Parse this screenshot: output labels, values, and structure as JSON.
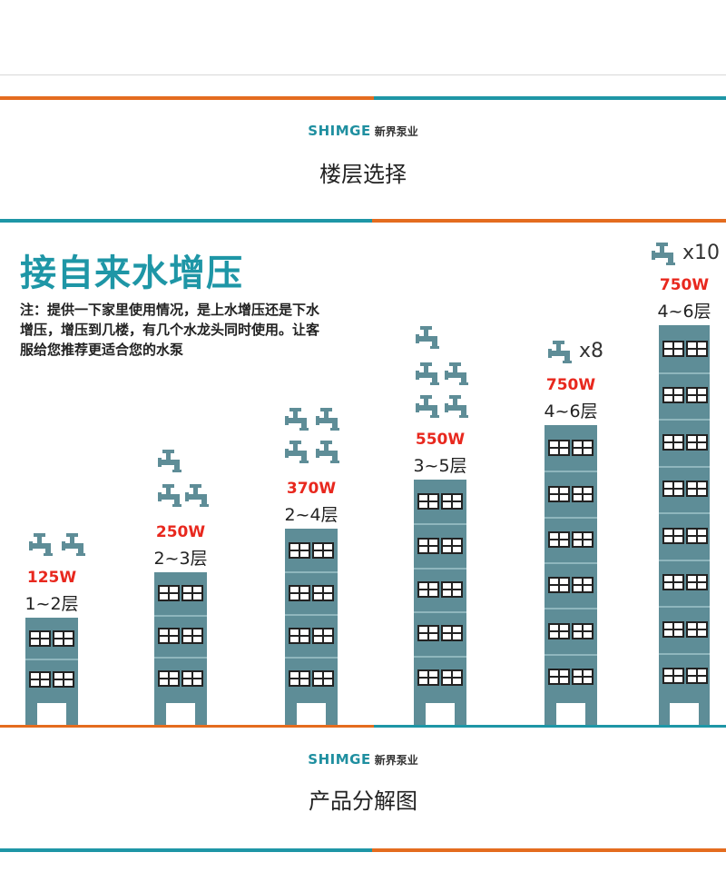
{
  "brand": {
    "en": "SHIMGE",
    "cn": "新界泵业"
  },
  "section1_title": "楼层选择",
  "headline": "接自来水增压",
  "note": "注：提供一下家里使用情况，是上水增压还是下水增压，增压到几楼，有几个水龙头同时使用。让客服给您推荐更适合您的水泵",
  "section2_title": "产品分解图",
  "colors": {
    "teal": "#1e96a6",
    "orange": "#e46c1f",
    "building": "#5e8d97",
    "power": "#e8281e"
  },
  "icons": {
    "tap": "faucet-icon"
  },
  "tiers": [
    {
      "power": "125W",
      "floors": "1~2层",
      "taps": 2,
      "multiplier": ""
    },
    {
      "power": "250W",
      "floors": "2~3层",
      "taps": 3,
      "multiplier": ""
    },
    {
      "power": "370W",
      "floors": "2~4层",
      "taps": 4,
      "multiplier": ""
    },
    {
      "power": "550W",
      "floors": "3~5层",
      "taps": 5,
      "multiplier": ""
    },
    {
      "power": "750W",
      "floors": "4~6层",
      "taps": 1,
      "multiplier": "x8"
    },
    {
      "power": "750W",
      "floors": "4~6层",
      "taps": 1,
      "multiplier": "x10"
    }
  ]
}
